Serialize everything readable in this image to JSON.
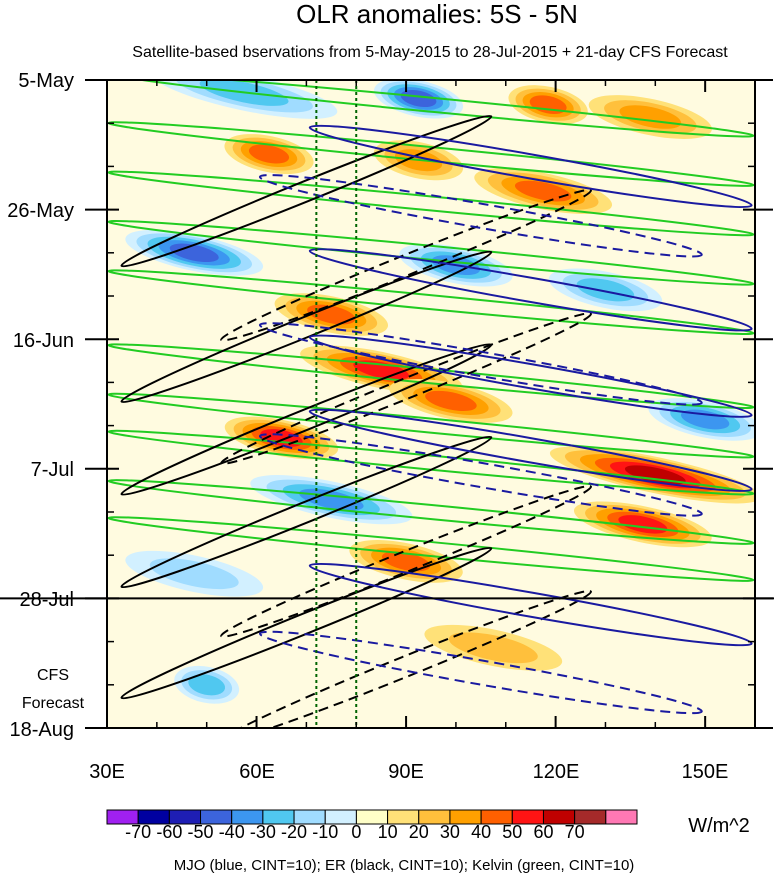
{
  "chart_data": {
    "type": "heatmap",
    "title": "OLR anomalies: 5S - 5N",
    "subtitle": "Satellite-based bservations from 5-May-2015 to 28-Jul-2015 + 21-day CFS Forecast",
    "x_tick_labels": [
      "30E",
      "60E",
      "90E",
      "120E",
      "150E"
    ],
    "x_tick_values": [
      30,
      60,
      90,
      120,
      150
    ],
    "xlim": [
      30,
      160
    ],
    "y_tick_labels": [
      "5-May",
      "26-May",
      "16-Jun",
      "7-Jul",
      "28-Jul",
      "18-Aug"
    ],
    "y_tick_days": [
      0,
      21,
      42,
      63,
      84,
      105
    ],
    "ylim_days": [
      0,
      105
    ],
    "observation_end_day": 84,
    "forecast_label_line1": "CFS",
    "forecast_label_line2": "Forecast",
    "reference_lines_lon": [
      72,
      80
    ],
    "colorbar": {
      "labels": [
        "-70",
        "-60",
        "-50",
        "-40",
        "-30",
        "-20",
        "-10",
        "0",
        "10",
        "20",
        "30",
        "40",
        "50",
        "60",
        "70"
      ],
      "colors": [
        "#a020f0",
        "#0000a0",
        "#1e1eb4",
        "#3c64dc",
        "#3c96f0",
        "#50c8f0",
        "#a0dcff",
        "#d2f0ff",
        "#ffffc8",
        "#ffe178",
        "#ffc03c",
        "#ffa000",
        "#ff6000",
        "#ff1414",
        "#c00000",
        "#a52a2a",
        "#ff78b4"
      ],
      "unit": "W/m^2"
    },
    "contours_caption": "MJO (blue, CINT=10); ER (black, CINT=10); Kelvin (green, CINT=10)",
    "anomaly_bands": [
      {
        "day": 2,
        "lon": [
          40,
          75
        ],
        "value": -30
      },
      {
        "day": 3,
        "lon": [
          85,
          100
        ],
        "value": -50
      },
      {
        "day": 4,
        "lon": [
          112,
          125
        ],
        "value": 40
      },
      {
        "day": 6,
        "lon": [
          128,
          150
        ],
        "value": 30
      },
      {
        "day": 12,
        "lon": [
          55,
          70
        ],
        "value": 40
      },
      {
        "day": 13,
        "lon": [
          85,
          100
        ],
        "value": 30
      },
      {
        "day": 18,
        "lon": [
          105,
          130
        ],
        "value": 40
      },
      {
        "day": 28,
        "lon": [
          35,
          60
        ],
        "value": -50
      },
      {
        "day": 30,
        "lon": [
          90,
          110
        ],
        "value": -40
      },
      {
        "day": 34,
        "lon": [
          120,
          140
        ],
        "value": -30
      },
      {
        "day": 38,
        "lon": [
          65,
          85
        ],
        "value": 40
      },
      {
        "day": 47,
        "lon": [
          70,
          100
        ],
        "value": 50
      },
      {
        "day": 52,
        "lon": [
          88,
          110
        ],
        "value": 40
      },
      {
        "day": 58,
        "lon": [
          55,
          75
        ],
        "value": 50
      },
      {
        "day": 55,
        "lon": [
          140,
          160
        ],
        "value": -40
      },
      {
        "day": 64,
        "lon": [
          120,
          160
        ],
        "value": 60
      },
      {
        "day": 68,
        "lon": [
          60,
          90
        ],
        "value": -40
      },
      {
        "day": 72,
        "lon": [
          125,
          150
        ],
        "value": 50
      },
      {
        "day": 78,
        "lon": [
          80,
          100
        ],
        "value": 40
      },
      {
        "day": 80,
        "lon": [
          35,
          60
        ],
        "value": -20
      },
      {
        "day": 92,
        "lon": [
          95,
          120
        ],
        "value": 20
      },
      {
        "day": 98,
        "lon": [
          45,
          55
        ],
        "value": -30
      }
    ]
  }
}
